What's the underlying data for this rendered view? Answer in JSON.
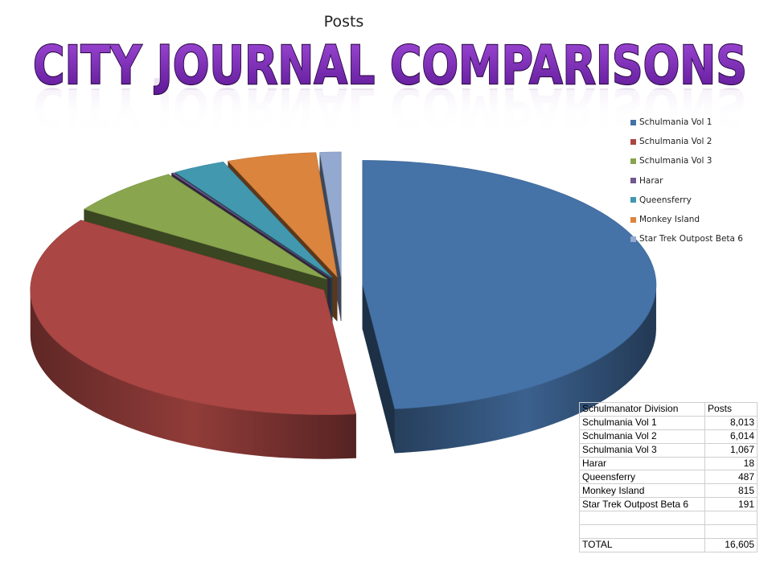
{
  "headline": "CITY JOURNAL COMPARISONS",
  "chart_data": {
    "type": "pie",
    "title": "Posts",
    "three_d": true,
    "exploded": true,
    "legend_position": "right",
    "series": [
      {
        "name": "Schulmania Vol 1",
        "value": 8013,
        "color": "#4572A7"
      },
      {
        "name": "Schulmania Vol 2",
        "value": 6014,
        "color": "#AA4643"
      },
      {
        "name": "Schulmania Vol 3",
        "value": 1067,
        "color": "#89A54E"
      },
      {
        "name": "Harar",
        "value": 18,
        "color": "#71588F"
      },
      {
        "name": "Queensferry",
        "value": 487,
        "color": "#4198AF"
      },
      {
        "name": "Monkey Island",
        "value": 815,
        "color": "#DB843D"
      },
      {
        "name": "Star Trek Outpost Beta 6",
        "value": 191,
        "color": "#93A9CF"
      }
    ]
  },
  "table": {
    "headers": [
      "Schulmanator Division",
      "Posts"
    ],
    "rows": [
      [
        "Schulmania Vol 1",
        "8,013"
      ],
      [
        "Schulmania Vol 2",
        "6,014"
      ],
      [
        "Schulmania Vol 3",
        "1,067"
      ],
      [
        "Harar",
        "18"
      ],
      [
        "Queensferry",
        "487"
      ],
      [
        "Monkey Island",
        "815"
      ],
      [
        "Star Trek Outpost Beta 6",
        "191"
      ],
      [
        "",
        ""
      ],
      [
        "",
        ""
      ]
    ],
    "total_label": "TOTAL",
    "total_value": "16,605"
  }
}
